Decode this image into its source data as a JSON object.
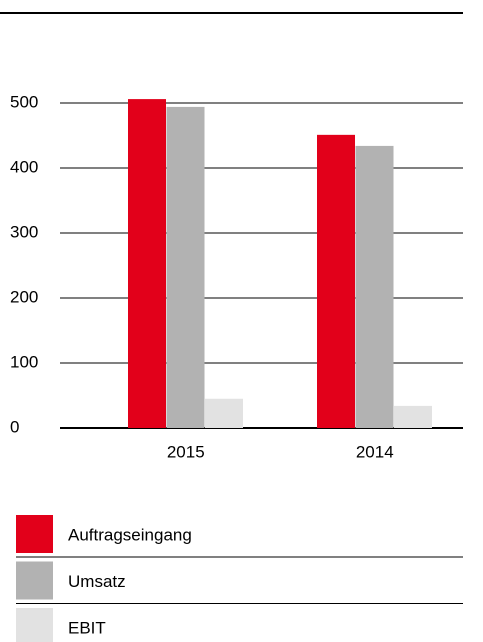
{
  "chart_data": {
    "type": "bar",
    "categories": [
      "2015",
      "2014"
    ],
    "series": [
      {
        "name": "Auftragseingang",
        "color": "#e2001a",
        "values": [
          506,
          451
        ]
      },
      {
        "name": "Umsatz",
        "color": "#b2b2b2",
        "values": [
          494,
          434
        ]
      },
      {
        "name": "EBIT",
        "color": "#e2e2e2",
        "values": [
          45,
          34
        ]
      }
    ],
    "ylim": [
      0,
      500
    ],
    "yticks": [
      0,
      100,
      200,
      300,
      400,
      500
    ],
    "grid": true
  }
}
